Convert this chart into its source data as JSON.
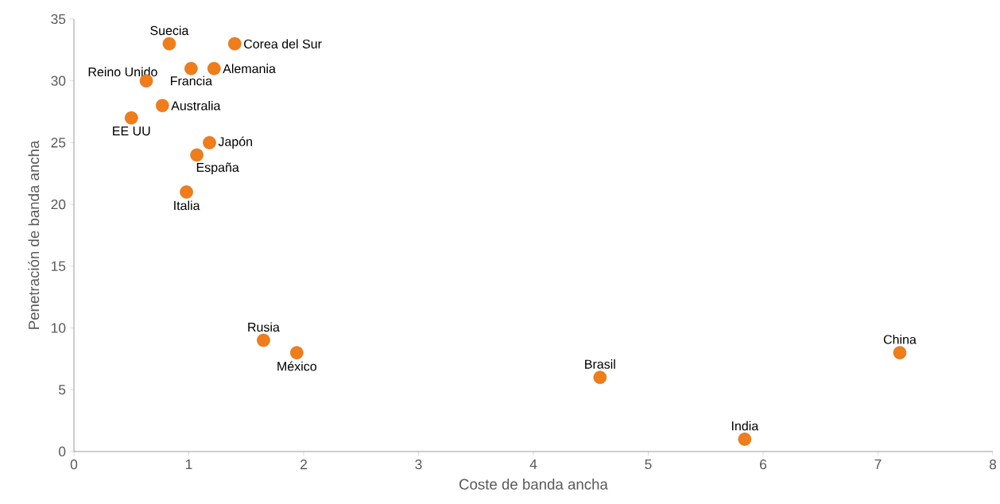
{
  "chart_data": {
    "type": "scatter",
    "xlabel": "Coste de banda ancha",
    "ylabel": "Penetración de banda ancha",
    "x": [
      0.83,
      1.4,
      1.22,
      1.02,
      0.63,
      0.77,
      0.5,
      1.18,
      1.07,
      0.98,
      1.65,
      1.94,
      4.58,
      5.84,
      7.19
    ],
    "values": [
      33,
      33,
      31,
      31,
      30,
      28,
      27,
      25,
      24,
      21,
      9,
      8,
      6,
      1,
      8
    ],
    "color": "#f07d1a",
    "marker": "circle",
    "xlim": [
      0,
      8
    ],
    "ylim": [
      0,
      35
    ],
    "xticks": [
      0,
      1,
      2,
      3,
      4,
      5,
      6,
      7,
      8
    ],
    "yticks": [
      0,
      5,
      10,
      15,
      20,
      25,
      30,
      35
    ],
    "annotations": [
      {
        "text": "Suecia",
        "x": 0.83,
        "y": 33
      },
      {
        "text": "Corea del Sur",
        "x": 1.4,
        "y": 33
      },
      {
        "text": "Alemania",
        "x": 1.22,
        "y": 31
      },
      {
        "text": "Francia",
        "x": 1.02,
        "y": 31
      },
      {
        "text": "Reino Unido",
        "x": 0.63,
        "y": 30
      },
      {
        "text": "Australia",
        "x": 0.77,
        "y": 28
      },
      {
        "text": "EE UU",
        "x": 0.5,
        "y": 27
      },
      {
        "text": "Japón",
        "x": 1.18,
        "y": 25
      },
      {
        "text": "España",
        "x": 1.07,
        "y": 24
      },
      {
        "text": "Italia",
        "x": 0.98,
        "y": 21
      },
      {
        "text": "Rusia",
        "x": 1.65,
        "y": 9
      },
      {
        "text": "México",
        "x": 1.94,
        "y": 8
      },
      {
        "text": "Brasil",
        "x": 4.58,
        "y": 6
      },
      {
        "text": "India",
        "x": 5.84,
        "y": 1
      },
      {
        "text": "China",
        "x": 7.19,
        "y": 8
      }
    ]
  }
}
